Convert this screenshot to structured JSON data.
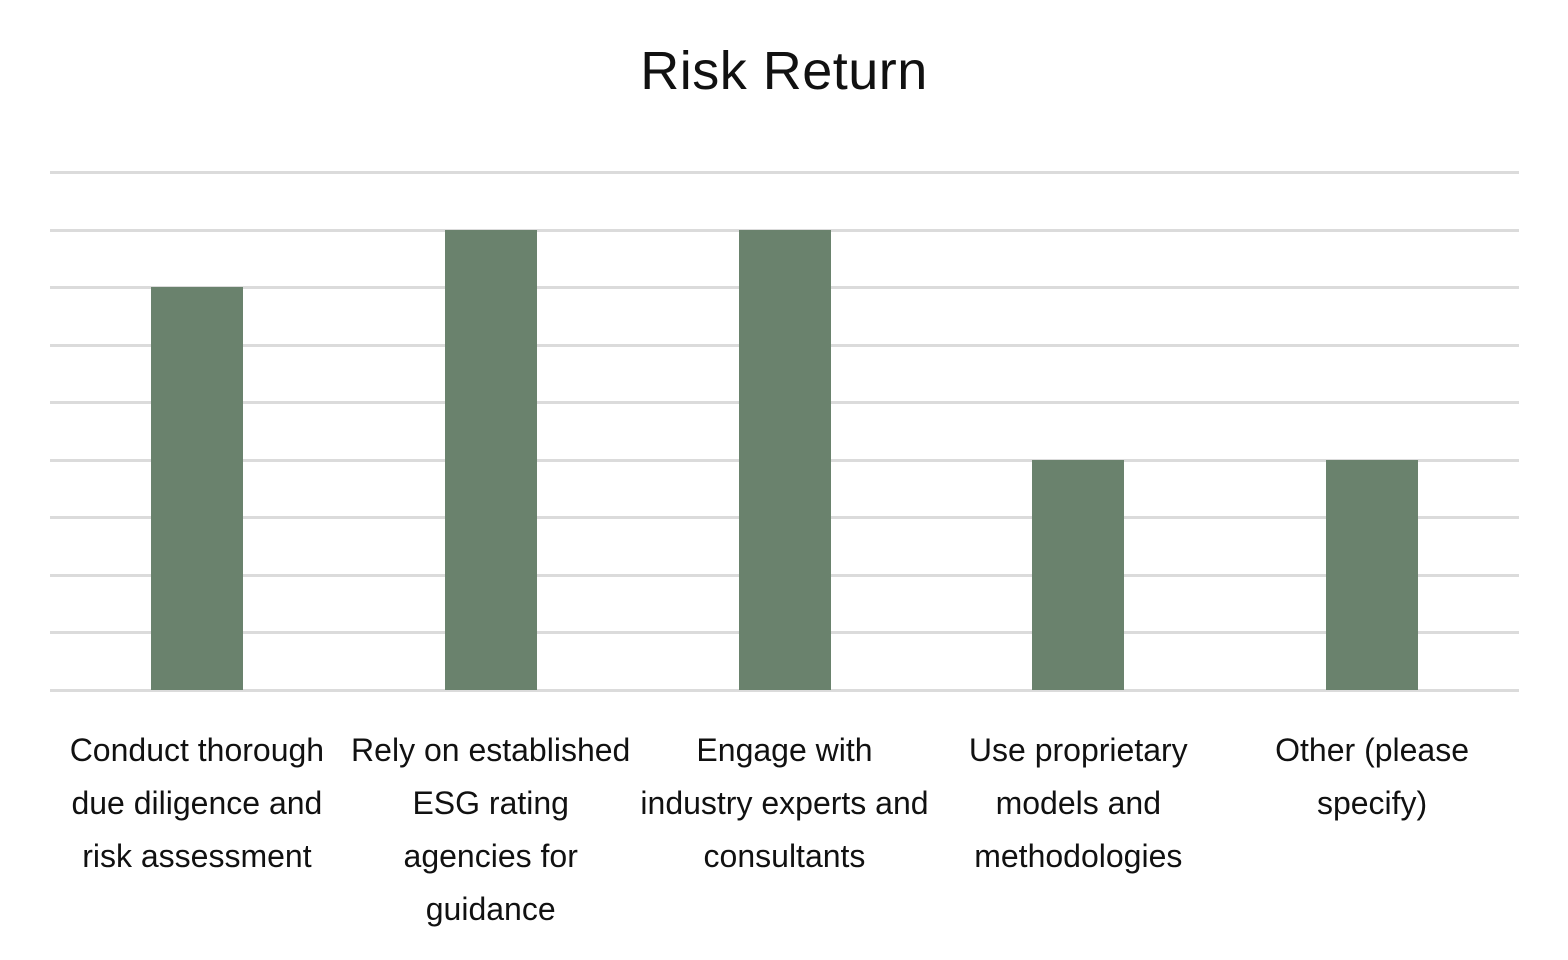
{
  "title": "Risk Return",
  "colors": {
    "bar": "#6A826D",
    "gridline": "#DBDBDB",
    "background": "#FFFFFF",
    "text": "#111111"
  },
  "chart_data": {
    "type": "bar",
    "title": "Risk Return",
    "categories": [
      "Conduct thorough due diligence and risk assessment",
      "Rely on established ESG rating agencies for guidance",
      "Engage with industry experts and consultants",
      "Use proprietary models and methodologies",
      "Other (please specify)"
    ],
    "values": [
      7,
      8,
      8,
      4,
      4
    ],
    "xlabel": "",
    "ylabel": "",
    "ylim": [
      0,
      9
    ],
    "gridline_interval": 1,
    "grid": "horizontal-only",
    "y_axis_tick_labels_visible": false,
    "legend": "none",
    "bar_color": "#6A826D"
  }
}
